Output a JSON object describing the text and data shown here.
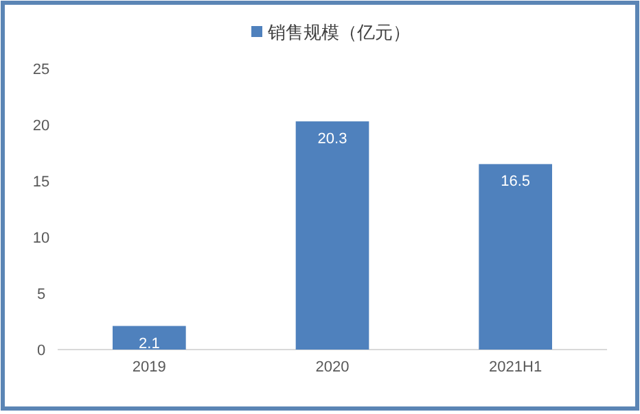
{
  "chart_data": {
    "type": "bar",
    "categories": [
      "2019",
      "2020",
      "2021H1"
    ],
    "series": [
      {
        "name": "销售规模（亿元）",
        "color": "#4f81bd",
        "values": [
          2.1,
          20.3,
          16.5
        ]
      }
    ],
    "ylim": [
      0,
      25
    ],
    "yticks": [
      0,
      5,
      10,
      15,
      20,
      25
    ],
    "data_labels": true,
    "legend": "top",
    "grid": false
  }
}
